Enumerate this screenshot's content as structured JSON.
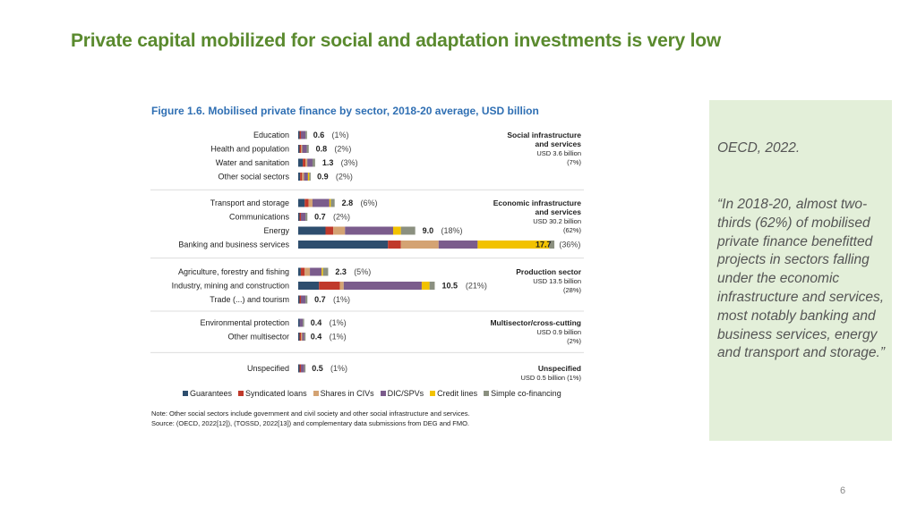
{
  "slide": {
    "title": "Private capital mobilized for social and adaptation investments is very low",
    "page_number": "6"
  },
  "figure": {
    "title": "Figure 1.6. Mobilised private finance by sector, 2018-20 average, USD billion",
    "note_line1": "Note: Other social sectors include government and civil society and other social infrastructure and services.",
    "note_line2": "Source: (OECD, 2022[12]), (TOSSD, 2022[13]) and complementary data submissions from DEG and FMO."
  },
  "quote": {
    "source": "OECD, 2022.",
    "text": "“In 2018-20, almost two-thirds (62%) of mobilised private finance benefitted projects in sectors falling under the economic infrastructure and services, most notably banking and business services, energy and transport and storage.”"
  },
  "chart_data": {
    "type": "bar",
    "orientation": "horizontal",
    "stacked": true,
    "title": "Figure 1.6. Mobilised private finance by sector, 2018-20 average, USD billion",
    "series_colors": [
      "#2e4e6e",
      "#c0392b",
      "#d4a373",
      "#7b5c8c",
      "#f2c200",
      "#8b9080"
    ],
    "legend_position": "bottom",
    "series": [
      {
        "name": "Guarantees"
      },
      {
        "name": "Syndicated loans"
      },
      {
        "name": "Shares in CIVs"
      },
      {
        "name": "DIC/SPVs"
      },
      {
        "name": "Credit lines"
      },
      {
        "name": "Simple co-financing"
      }
    ],
    "groups": [
      {
        "name_line1": "Social infrastructure",
        "name_line2": "and services",
        "amount": "USD 3.6 billion",
        "share": "(7%)",
        "rows": [
          {
            "label": "Education",
            "total": 0.6,
            "value": "0.6",
            "pct": "(1%)",
            "segments": [
              0.05,
              0.08,
              0.0,
              0.35,
              0.0,
              0.12
            ]
          },
          {
            "label": "Health and population",
            "total": 0.8,
            "value": "0.8",
            "pct": "(2%)",
            "segments": [
              0.1,
              0.1,
              0.1,
              0.35,
              0.0,
              0.15
            ]
          },
          {
            "label": "Water and sanitation",
            "total": 1.3,
            "value": "1.3",
            "pct": "(3%)",
            "segments": [
              0.35,
              0.2,
              0.15,
              0.4,
              0.0,
              0.2
            ]
          },
          {
            "label": "Other social sectors",
            "total": 0.9,
            "value": "0.9",
            "pct": "(2%)",
            "segments": [
              0.15,
              0.15,
              0.15,
              0.3,
              0.05,
              0.1
            ]
          }
        ]
      },
      {
        "name_line1": "Economic infrastructure",
        "name_line2": "and services",
        "amount": "USD 30.2 billion",
        "share": "(62%)",
        "rows": [
          {
            "label": "Transport and storage",
            "total": 2.8,
            "value": "2.8",
            "pct": "(6%)",
            "segments": [
              0.5,
              0.3,
              0.3,
              1.3,
              0.1,
              0.3
            ]
          },
          {
            "label": "Communications",
            "total": 0.7,
            "value": "0.7",
            "pct": "(2%)",
            "segments": [
              0.1,
              0.1,
              0.0,
              0.35,
              0.0,
              0.15
            ]
          },
          {
            "label": "Energy",
            "total": 9.0,
            "value": "9.0",
            "pct": "(18%)",
            "segments": [
              2.1,
              0.6,
              0.9,
              3.7,
              0.6,
              1.1
            ]
          },
          {
            "label": "Banking and business services",
            "total": 17.7,
            "value": "17.7",
            "pct": "(36%)",
            "segments": [
              6.9,
              1.0,
              2.9,
              3.0,
              5.5,
              0.4
            ]
          }
        ]
      },
      {
        "name_line1": "Production sector",
        "name_line2": "",
        "amount": "USD 13.5 billion",
        "share": "(28%)",
        "rows": [
          {
            "label": "Agriculture, forestry and fishing",
            "total": 2.3,
            "value": "2.3",
            "pct": "(5%)",
            "segments": [
              0.2,
              0.3,
              0.4,
              0.9,
              0.1,
              0.4
            ]
          },
          {
            "label": "Industry, mining and construction",
            "total": 10.5,
            "value": "10.5",
            "pct": "(21%)",
            "segments": [
              1.6,
              1.6,
              0.3,
              6.0,
              0.6,
              0.4
            ]
          },
          {
            "label": "Trade (...) and tourism",
            "total": 0.7,
            "value": "0.7",
            "pct": "(1%)",
            "segments": [
              0.1,
              0.1,
              0.0,
              0.35,
              0.0,
              0.15
            ]
          }
        ]
      },
      {
        "name_line1": "Multisector/cross-cutting",
        "name_line2": "",
        "amount": "USD 0.9 billion",
        "share": "(2%)",
        "rows": [
          {
            "label": "Environmental protection",
            "total": 0.4,
            "value": "0.4",
            "pct": "(1%)",
            "segments": [
              0.05,
              0.0,
              0.0,
              0.25,
              0.0,
              0.1
            ]
          },
          {
            "label": "Other multisector",
            "total": 0.4,
            "value": "0.4",
            "pct": "(1%)",
            "segments": [
              0.05,
              0.05,
              0.05,
              0.15,
              0.0,
              0.1
            ]
          }
        ]
      },
      {
        "name_line1": "Unspecified",
        "name_line2": "",
        "amount": "USD 0.5 billion (1%)",
        "share": "",
        "rows": [
          {
            "label": "Unspecified",
            "total": 0.5,
            "value": "0.5",
            "pct": "(1%)",
            "segments": [
              0.05,
              0.1,
              0.0,
              0.25,
              0.0,
              0.1
            ]
          }
        ]
      }
    ]
  }
}
